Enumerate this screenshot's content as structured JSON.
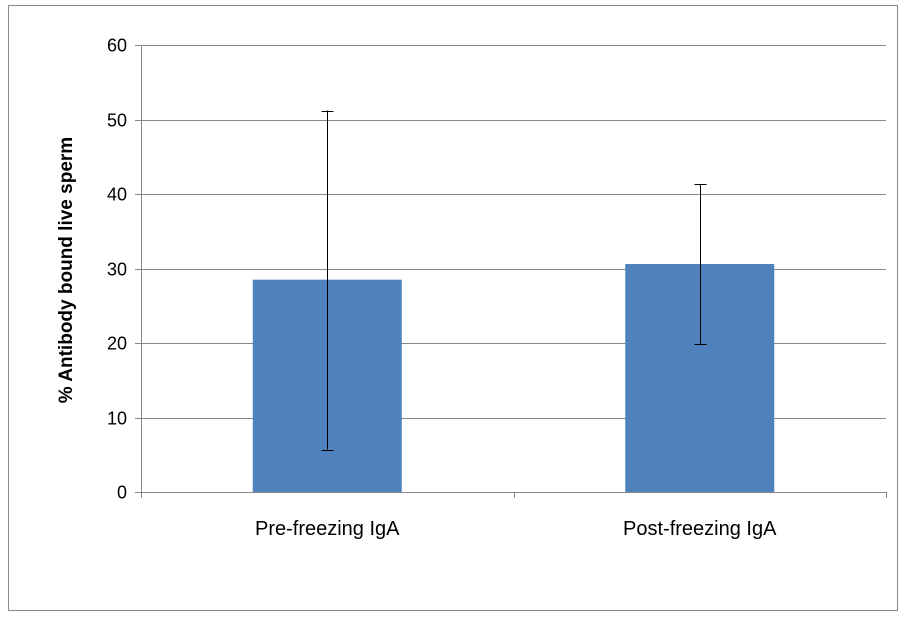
{
  "chart_data": {
    "type": "bar",
    "title": "",
    "xlabel": "",
    "ylabel": "% Antibody bound live sperm",
    "categories": [
      "Pre-freezing IgA",
      "Post-freezing IgA"
    ],
    "series": [
      {
        "values": [
          28.5,
          30.6
        ],
        "error_low": [
          5.7,
          19.8
        ],
        "error_high": [
          51.2,
          41.3
        ]
      }
    ],
    "ylim": [
      0,
      60
    ],
    "yticks": [
      0,
      10,
      20,
      30,
      40,
      50,
      60
    ],
    "grid": true,
    "legend": "none",
    "colors": {
      "bar": "#4f81bd",
      "grid": "#868686",
      "axis": "#868686",
      "error": "#000000"
    }
  }
}
